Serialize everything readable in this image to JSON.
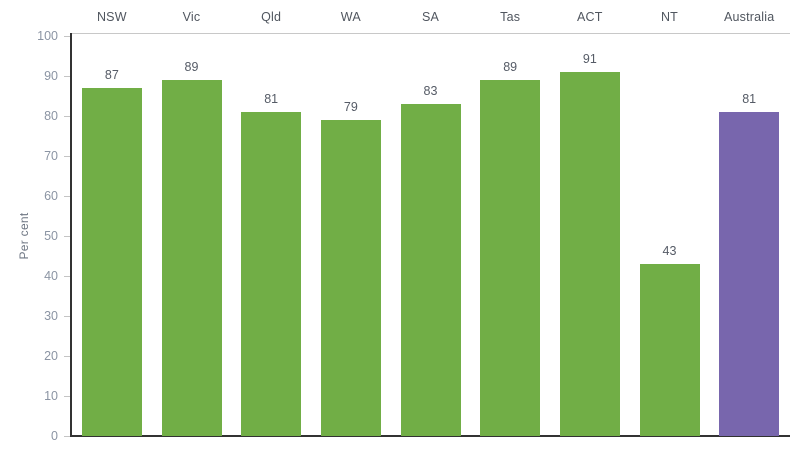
{
  "chart_data": {
    "type": "bar",
    "categories": [
      "NSW",
      "Vic",
      "Qld",
      "WA",
      "SA",
      "Tas",
      "ACT",
      "NT",
      "Australia"
    ],
    "values": [
      87,
      89,
      81,
      79,
      83,
      89,
      91,
      43,
      81
    ],
    "value_labels": [
      "87",
      "89",
      "81",
      "79",
      "83",
      "89",
      "91",
      "43",
      "81"
    ],
    "title": "",
    "xlabel": "",
    "ylabel": "Per cent",
    "ylim": [
      0,
      100
    ],
    "yticks": [
      0,
      10,
      20,
      30,
      40,
      50,
      60,
      70,
      80,
      90,
      100
    ],
    "grid": "off",
    "legend": "none",
    "bar_color": "#71AE46",
    "highlight_color": "#7866AD",
    "highlight_category": "Australia",
    "axis_color": "#323232",
    "tick_color": "#c4c4c4",
    "header_line_color": "#c8c8c8"
  }
}
